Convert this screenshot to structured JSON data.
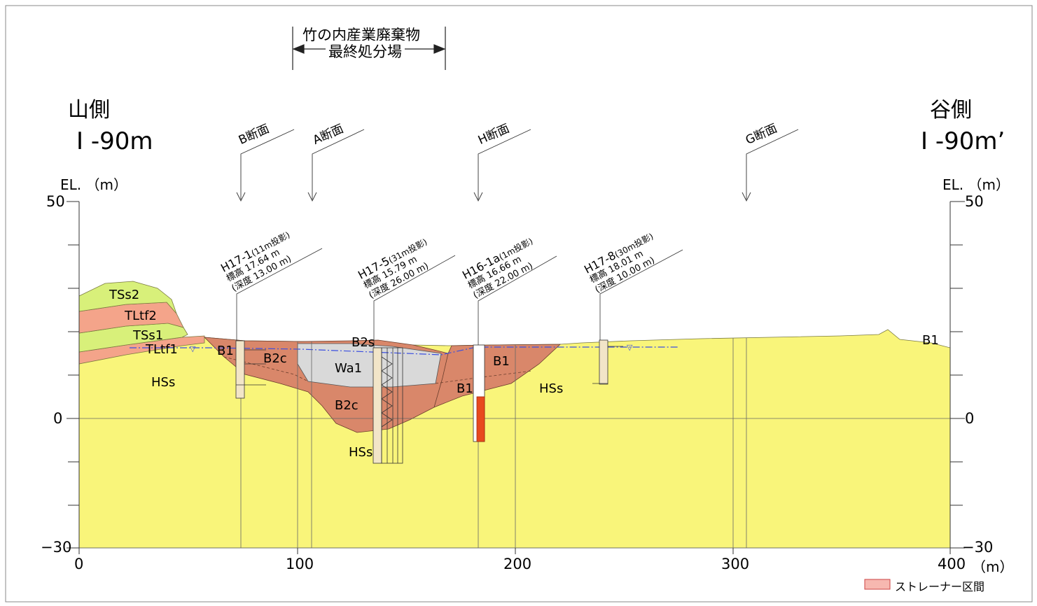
{
  "header": {
    "facility_line1": "竹の内産業廃棄物",
    "facility_line2": "最終処分場",
    "left_side": "山側",
    "right_side": "谷側",
    "left_section": "I -90m",
    "right_section": "I -90m’"
  },
  "axes": {
    "y_label_left": "EL. （m）",
    "y_label_right": "EL. （m）",
    "x_unit": "（m）",
    "y_ticks_left": [
      "50",
      "0",
      "−30"
    ],
    "y_ticks_right": [
      "50",
      "0",
      "−30"
    ],
    "x_ticks": [
      "0",
      "100",
      "200",
      "300",
      "400"
    ]
  },
  "sections": [
    "B断面",
    "A断面",
    "H断面",
    "G断面"
  ],
  "boreholes": [
    {
      "name": "H17-1",
      "proj": "(11m投影)",
      "elev": "標高 17.64 m",
      "depth": "(深度 13.00 m)"
    },
    {
      "name": "H17-5",
      "proj": "(31m投影)",
      "elev": "標高 15.79 m",
      "depth": "(深度 26.00 m)"
    },
    {
      "name": "H16-1a",
      "proj": "(1m投影)",
      "elev": "標高 16.66 m",
      "depth": "(深度 22.00 m)"
    },
    {
      "name": "H17-8",
      "proj": "(30m投影)",
      "elev": "標高 18.01 m",
      "depth": "(深度 10.00 m)"
    }
  ],
  "layers": {
    "tss2": "TSs2",
    "tltf2": "TLtf2",
    "tss1": "TSs1",
    "tltf1": "TLtf1",
    "hss_left": "HSs",
    "b1_left": "B1",
    "b2c_upper": "B2c",
    "b2s": "B2s",
    "wa1": "Wa1",
    "b2c_lower": "B2c",
    "hss_bottom": "HSs",
    "b1_mid_upper": "B1",
    "b1_mid_lower": "B1",
    "hss_right": "HSs",
    "b1_right": "B1"
  },
  "legend": {
    "strainer": "ストレーナー区間"
  },
  "colors": {
    "hss": "#f9f57a",
    "b": "#d9876a",
    "wa": "#d9d9d9",
    "tss": "#d8f07a",
    "tltf": "#f4a48a",
    "strainer": "#e8491e",
    "water": "#3b4fe0"
  }
}
